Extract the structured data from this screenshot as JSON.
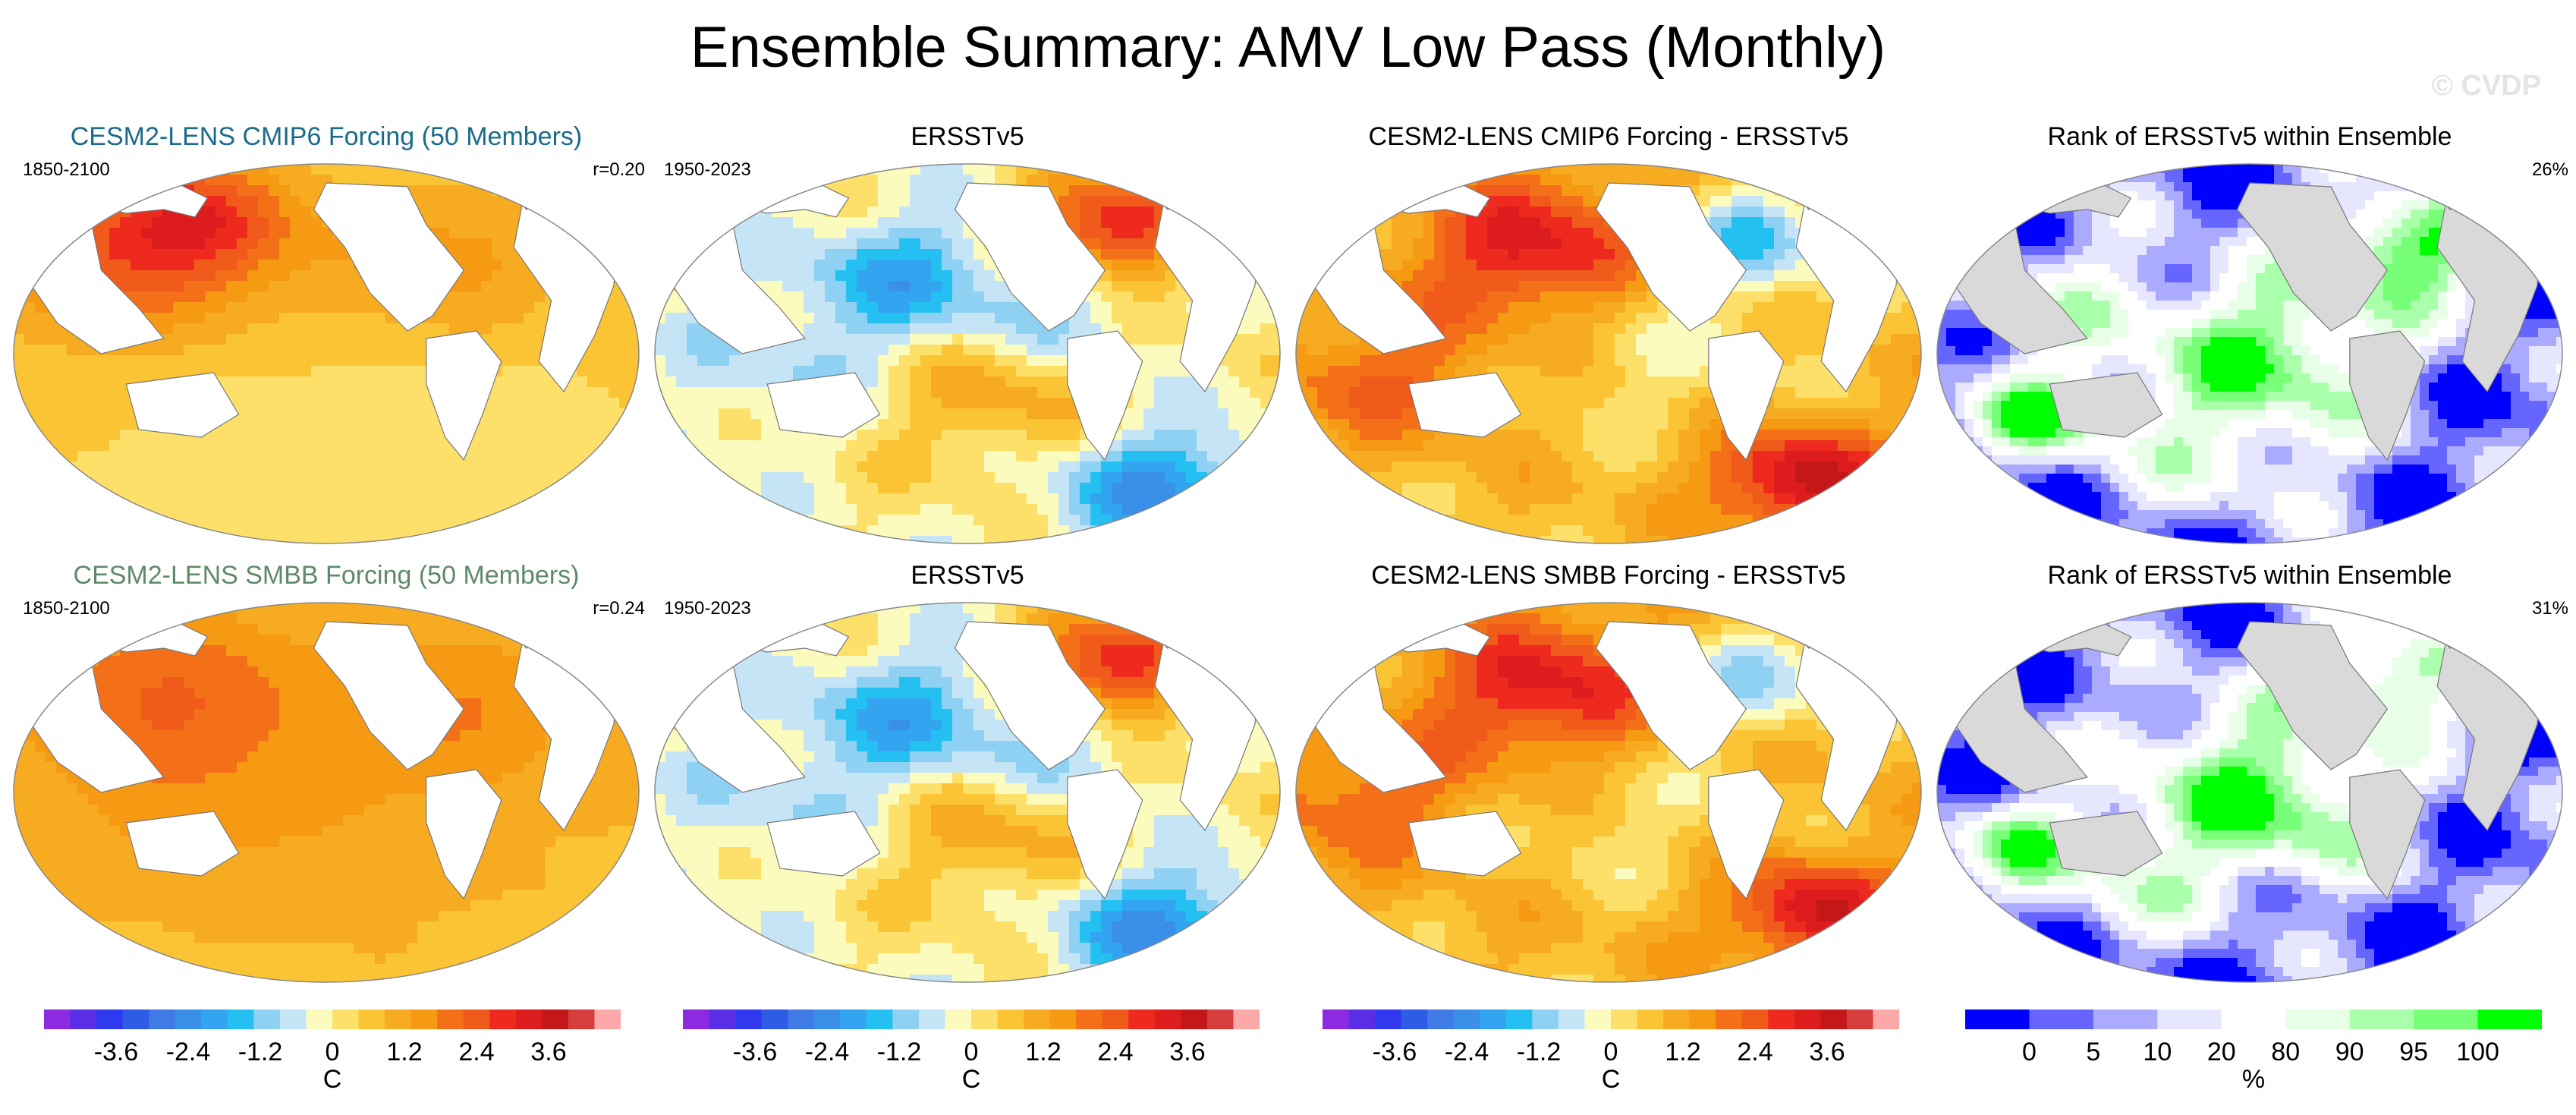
{
  "title": "Ensemble Summary: AMV Low Pass (Monthly)",
  "watermark": "© CVDP",
  "colors": {
    "title_cmip6": "#1b6c8a",
    "title_smbb": "#5f8a6a",
    "land": "#ffffff",
    "rank_land": "#d9d9d9",
    "coast": "#777777"
  },
  "panels": [
    {
      "row": 1,
      "col": 1,
      "kind": "model",
      "title": "CESM2-LENS CMIP6 Forcing (50 Members)",
      "title_color": "#1b6c8a",
      "left_label": "1850-2100",
      "right_label": "r=0.20",
      "pattern": "model_cmip6"
    },
    {
      "row": 1,
      "col": 2,
      "kind": "obs",
      "title": "ERSSTv5",
      "title_color": "#000000",
      "left_label": "1950-2023",
      "right_label": "",
      "pattern": "obs"
    },
    {
      "row": 1,
      "col": 3,
      "kind": "diff",
      "title": "CESM2-LENS CMIP6 Forcing - ERSSTv5",
      "title_color": "#000000",
      "left_label": "",
      "right_label": "",
      "pattern": "diff_cmip6"
    },
    {
      "row": 1,
      "col": 4,
      "kind": "rank",
      "title": "Rank of ERSSTv5 within Ensemble",
      "title_color": "#000000",
      "left_label": "",
      "right_label": "26%",
      "pattern": "rank_cmip6"
    },
    {
      "row": 2,
      "col": 1,
      "kind": "model",
      "title": "CESM2-LENS SMBB Forcing (50 Members)",
      "title_color": "#5f8a6a",
      "left_label": "1850-2100",
      "right_label": "r=0.24",
      "pattern": "model_smbb"
    },
    {
      "row": 2,
      "col": 2,
      "kind": "obs",
      "title": "ERSSTv5",
      "title_color": "#000000",
      "left_label": "1950-2023",
      "right_label": "",
      "pattern": "obs"
    },
    {
      "row": 2,
      "col": 3,
      "kind": "diff",
      "title": "CESM2-LENS SMBB Forcing - ERSSTv5",
      "title_color": "#000000",
      "left_label": "",
      "right_label": "",
      "pattern": "diff_smbb"
    },
    {
      "row": 2,
      "col": 4,
      "kind": "rank",
      "title": "Rank of ERSSTv5 within Ensemble",
      "title_color": "#000000",
      "left_label": "",
      "right_label": "31%",
      "pattern": "rank_smbb"
    }
  ],
  "colorbars": [
    {
      "kind": "sst",
      "unit": "C",
      "tick_labels": [
        "-3.6",
        "-2.4",
        "-1.2",
        "0",
        "1.2",
        "2.4",
        "3.6"
      ],
      "tick_values": [
        -3.6,
        -2.4,
        -1.2,
        0,
        1.2,
        2.4,
        3.6
      ],
      "range": [
        -4.8,
        4.8
      ],
      "colors": [
        "#8a2be2",
        "#5a2ee6",
        "#2f3af0",
        "#2f5ce6",
        "#3f7ae6",
        "#3a8fe8",
        "#33a4f0",
        "#25c0f2",
        "#8fd1f2",
        "#c5e5f7",
        "#fbfbbe",
        "#fde06a",
        "#fbc435",
        "#f7ab20",
        "#f59a12",
        "#f36f18",
        "#f05a1b",
        "#ee2a1e",
        "#dd1d1d",
        "#c41717",
        "#d63d3d",
        "#fca8a8"
      ]
    },
    {
      "kind": "rank",
      "unit": "%",
      "tick_labels": [
        "0",
        "5",
        "10",
        "20",
        "80",
        "90",
        "95",
        "100"
      ],
      "colors": [
        "#0000ff",
        "#6666ff",
        "#aaaaff",
        "#e6e6ff",
        "#ffffff",
        "#e6ffe6",
        "#aaffaa",
        "#77ff77",
        "#00ff00"
      ]
    }
  ]
}
